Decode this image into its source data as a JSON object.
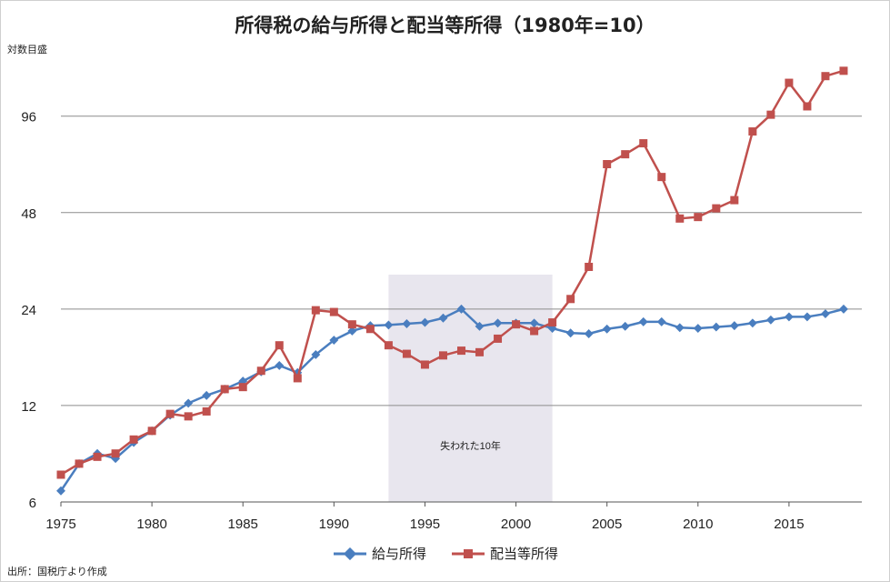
{
  "chart_data": {
    "type": "line",
    "title": "所得税の給与所得と配当等所得（1980年=10）",
    "ylabel": "対数目盛",
    "yscale": "log2",
    "yticks": [
      6,
      12,
      24,
      48,
      96
    ],
    "ylim": [
      6,
      140
    ],
    "xlim": [
      1975,
      2019
    ],
    "xticks": [
      1975,
      1980,
      1985,
      1990,
      1995,
      2000,
      2005,
      2010,
      2015
    ],
    "grid": "horizontal",
    "legend_position": "bottom",
    "shaded_region": {
      "x_start": 1993,
      "x_end": 2002,
      "label": "失われた10年",
      "color": "#e8e6ee"
    },
    "x": [
      1975,
      1976,
      1977,
      1978,
      1979,
      1980,
      1981,
      1982,
      1983,
      1984,
      1985,
      1986,
      1987,
      1988,
      1989,
      1990,
      1991,
      1992,
      1993,
      1994,
      1995,
      1996,
      1997,
      1998,
      1999,
      2000,
      2001,
      2002,
      2003,
      2004,
      2005,
      2006,
      2007,
      2008,
      2009,
      2010,
      2011,
      2012,
      2013,
      2014,
      2015,
      2016,
      2017,
      2018
    ],
    "series": [
      {
        "name": "給与所得",
        "color": "#4a7ebf",
        "marker": "diamond",
        "values": [
          6.5,
          7.9,
          8.5,
          8.2,
          9.2,
          10.0,
          11.2,
          12.2,
          12.9,
          13.5,
          14.3,
          15.3,
          16.0,
          15.2,
          17.3,
          19.2,
          20.5,
          21.3,
          21.4,
          21.6,
          21.8,
          22.5,
          24.0,
          21.2,
          21.7,
          21.7,
          21.7,
          20.9,
          20.2,
          20.1,
          20.8,
          21.2,
          21.9,
          21.9,
          21.0,
          20.9,
          21.1,
          21.3,
          21.7,
          22.2,
          22.7,
          22.7,
          23.2,
          24.0
        ]
      },
      {
        "name": "配当等所得",
        "color": "#c0504d",
        "marker": "square",
        "values": [
          7.3,
          7.9,
          8.3,
          8.5,
          9.4,
          10.0,
          11.3,
          11.1,
          11.5,
          13.5,
          13.7,
          15.4,
          18.5,
          14.6,
          23.8,
          23.5,
          21.5,
          20.8,
          18.5,
          17.4,
          16.1,
          17.2,
          17.8,
          17.6,
          19.4,
          21.5,
          20.5,
          21.8,
          25.8,
          32.5,
          68.0,
          73.0,
          79.0,
          62.0,
          46.0,
          46.5,
          49.5,
          52.5,
          86.0,
          97.0,
          122.0,
          103.0,
          128.0,
          133.0
        ]
      }
    ]
  },
  "source_note": "出所：国税庁より作成"
}
